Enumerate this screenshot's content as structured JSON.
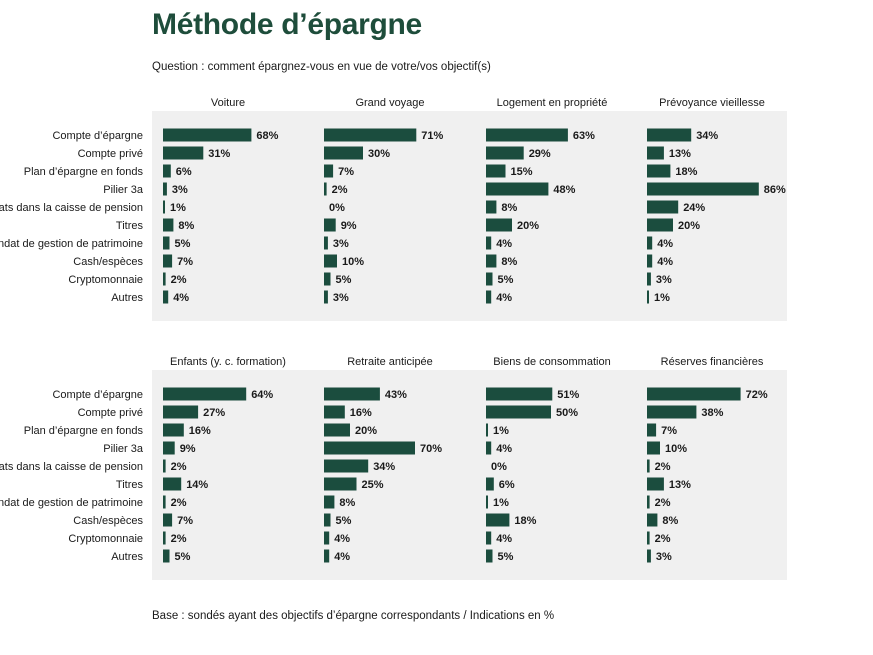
{
  "title": "Méthode d’épargne",
  "subtitle": "Question : comment épargnez-vous en vue de votre/vos objectif(s)",
  "footnote": "Base : sondés ayant des objectifs d’épargne correspondants / Indications en %",
  "colors": {
    "bar": "#1b4d3e",
    "panel_bg": "#f0f0f0",
    "title": "#1e4d3b",
    "text": "#1a1a1a"
  },
  "chart_data": {
    "type": "bar",
    "orientation": "horizontal",
    "value_suffix": "%",
    "xlim": [
      0,
      100
    ],
    "grid": false,
    "categories": [
      "Compte d’épargne",
      "Compte privé",
      "Plan d’épargne en fonds",
      "Pilier 3a",
      "Rachats dans la caisse de pension",
      "Titres",
      "Mandat de gestion de patrimoine",
      "Cash/espèces",
      "Cryptomonnaie",
      "Autres"
    ],
    "rows": [
      {
        "series": [
          {
            "name": "Voiture",
            "values": [
              68,
              31,
              6,
              3,
              1,
              8,
              5,
              7,
              2,
              4
            ]
          },
          {
            "name": "Grand voyage",
            "values": [
              71,
              30,
              7,
              2,
              0,
              9,
              3,
              10,
              5,
              3
            ]
          },
          {
            "name": "Logement en propriété",
            "values": [
              63,
              29,
              15,
              48,
              8,
              20,
              4,
              8,
              5,
              4
            ]
          },
          {
            "name": "Prévoyance vieillesse",
            "values": [
              34,
              13,
              18,
              86,
              24,
              20,
              4,
              4,
              3,
              1
            ]
          }
        ]
      },
      {
        "series": [
          {
            "name": "Enfants (y. c. formation)",
            "values": [
              64,
              27,
              16,
              9,
              2,
              14,
              2,
              7,
              2,
              5
            ]
          },
          {
            "name": "Retraite anticipée",
            "values": [
              43,
              16,
              20,
              70,
              34,
              25,
              8,
              5,
              4,
              4
            ]
          },
          {
            "name": "Biens de consommation",
            "values": [
              51,
              50,
              1,
              4,
              0,
              6,
              1,
              18,
              4,
              5
            ]
          },
          {
            "name": "Réserves financières",
            "values": [
              72,
              38,
              7,
              10,
              2,
              13,
              2,
              8,
              2,
              3
            ]
          }
        ]
      }
    ]
  }
}
